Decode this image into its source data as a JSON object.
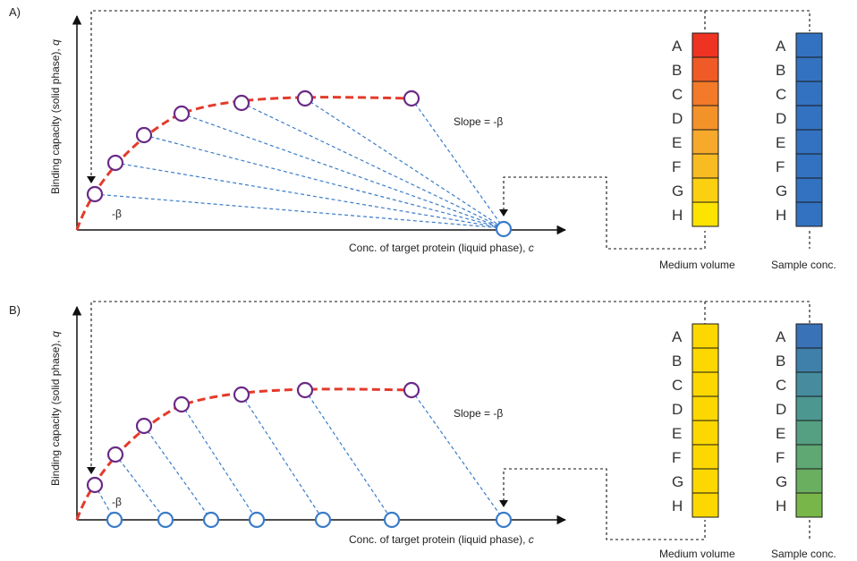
{
  "panels": [
    {
      "id": "A",
      "label": "A)",
      "ylabel_main": "Binding capacity (solid phase), ",
      "ylabel_var": "q",
      "xlabel_main": "Conc. of target protein (liquid phase), ",
      "xlabel_var": "c",
      "slope_label": "Slope = -β",
      "beta_label": "-β",
      "isotherm_points": 7,
      "liquid_points": 1,
      "medium_label": "Medium volume",
      "sample_label": "Sample conc.",
      "medium_colors": [
        "#ee3322",
        "#f05a26",
        "#f27a28",
        "#f4922a",
        "#f6a92a",
        "#f8bc22",
        "#fbd010",
        "#fde300"
      ],
      "sample_colors": [
        "#3372c0",
        "#3372c0",
        "#3372c0",
        "#3372c0",
        "#3372c0",
        "#3372c0",
        "#3372c0",
        "#3372c0"
      ]
    },
    {
      "id": "B",
      "label": "B)",
      "ylabel_main": "Binding capacity (solid phase), ",
      "ylabel_var": "q",
      "xlabel_main": "Conc. of target protein (liquid phase), ",
      "xlabel_var": "c",
      "slope_label": "Slope = -β",
      "beta_label": "-β",
      "isotherm_points": 7,
      "liquid_points": 7,
      "medium_label": "Medium volume",
      "sample_label": "Sample conc.",
      "medium_colors": [
        "#fdd800",
        "#fdd800",
        "#fdd800",
        "#fdd800",
        "#fdd800",
        "#fdd800",
        "#fdd800",
        "#fdd800"
      ],
      "sample_colors": [
        "#3a72b8",
        "#3f80aa",
        "#468c9e",
        "#4c9790",
        "#559f82",
        "#5fa773",
        "#6aae60",
        "#79b64a"
      ]
    }
  ],
  "row_letters": [
    "A",
    "B",
    "C",
    "D",
    "E",
    "F",
    "G",
    "H"
  ],
  "colors": {
    "isotherm": "#e43a2b",
    "isotherm_marker": "#6a2a86",
    "liquid_marker": "#3a7cc8",
    "dashed_blue": "#3a7cc8",
    "axis": "#111111"
  }
}
